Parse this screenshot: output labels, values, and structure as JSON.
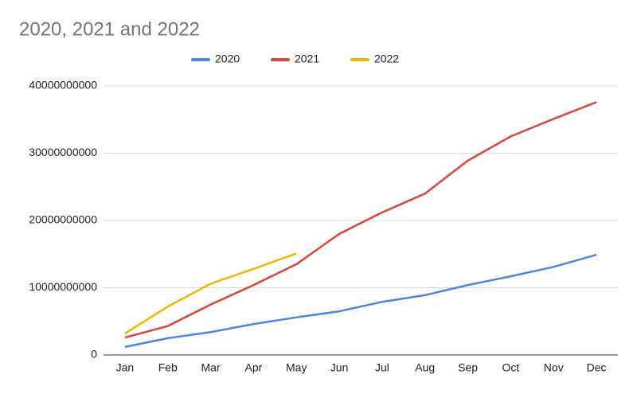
{
  "chart_data": {
    "type": "line",
    "title": "2020, 2021 and 2022",
    "categories": [
      "Jan",
      "Feb",
      "Mar",
      "Apr",
      "May",
      "Jun",
      "Jul",
      "Aug",
      "Sep",
      "Oct",
      "Nov",
      "Dec"
    ],
    "series": [
      {
        "name": "2020",
        "color": "#4a86e8",
        "values": [
          1200000000,
          2500000000,
          3400000000,
          4600000000,
          5600000000,
          6500000000,
          7900000000,
          8900000000,
          10400000000,
          11700000000,
          13100000000,
          14900000000
        ]
      },
      {
        "name": "2021",
        "color": "#db4437",
        "values": [
          2600000000,
          4300000000,
          7500000000,
          10400000000,
          13500000000,
          18000000000,
          21200000000,
          24000000000,
          28900000000,
          32500000000,
          35100000000,
          37600000000
        ]
      },
      {
        "name": "2022",
        "color": "#f4b400",
        "values": [
          3200000000,
          7200000000,
          10600000000,
          12800000000,
          15100000000,
          null,
          null,
          null,
          null,
          null,
          null,
          null
        ]
      }
    ],
    "ylim": [
      0,
      40000000000
    ],
    "yticks": [
      0,
      10000000000,
      20000000000,
      30000000000,
      40000000000
    ],
    "grid": true,
    "legend": "top"
  }
}
